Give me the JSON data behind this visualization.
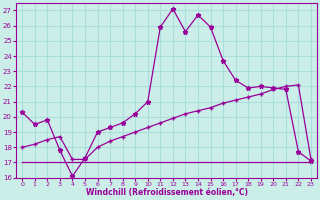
{
  "xlabel": "Windchill (Refroidissement éolien,°C)",
  "bg_color": "#cceee8",
  "line_color": "#990099",
  "grid_color": "#aadddd",
  "xlim": [
    -0.5,
    23.5
  ],
  "ylim": [
    16,
    27.5
  ],
  "yticks": [
    16,
    17,
    18,
    19,
    20,
    21,
    22,
    23,
    24,
    25,
    26,
    27
  ],
  "xticks": [
    0,
    1,
    2,
    3,
    4,
    5,
    6,
    7,
    8,
    9,
    10,
    11,
    12,
    13,
    14,
    15,
    16,
    17,
    18,
    19,
    20,
    21,
    22,
    23
  ],
  "series1_x": [
    0,
    1,
    2,
    3,
    4,
    5,
    6,
    7,
    8,
    9,
    10,
    11,
    12,
    13,
    14,
    15,
    16,
    17,
    18,
    19,
    20,
    21,
    22,
    23
  ],
  "series1_y": [
    20.3,
    19.5,
    19.8,
    17.8,
    16.1,
    17.3,
    19.0,
    19.3,
    19.6,
    20.2,
    21.0,
    25.9,
    27.1,
    25.6,
    26.7,
    25.9,
    23.7,
    22.4,
    21.9,
    22.0,
    21.9,
    21.8,
    17.7,
    17.1
  ],
  "series2_x": [
    0,
    1,
    2,
    3,
    4,
    5,
    6,
    7,
    8,
    9,
    10,
    11,
    12,
    13,
    14,
    15,
    16,
    17,
    18,
    19,
    20,
    21,
    22,
    23
  ],
  "series2_y": [
    18.0,
    18.2,
    18.5,
    18.7,
    17.2,
    17.2,
    18.0,
    18.4,
    18.7,
    19.0,
    19.3,
    19.6,
    19.9,
    20.2,
    20.4,
    20.6,
    20.9,
    21.1,
    21.3,
    21.5,
    21.8,
    22.0,
    22.1,
    17.2
  ],
  "series3_x": [
    0,
    1,
    2,
    3,
    4,
    5,
    6,
    7,
    8,
    9,
    10,
    11,
    12,
    13,
    14,
    15,
    16,
    17,
    18,
    19,
    20,
    21,
    22,
    23
  ],
  "series3_y": [
    17.0,
    17.0,
    17.0,
    17.0,
    17.0,
    17.0,
    17.0,
    17.0,
    17.0,
    17.0,
    17.0,
    17.0,
    17.0,
    17.0,
    17.0,
    17.0,
    17.0,
    17.0,
    17.0,
    17.0,
    17.0,
    17.0,
    17.0,
    17.0
  ]
}
